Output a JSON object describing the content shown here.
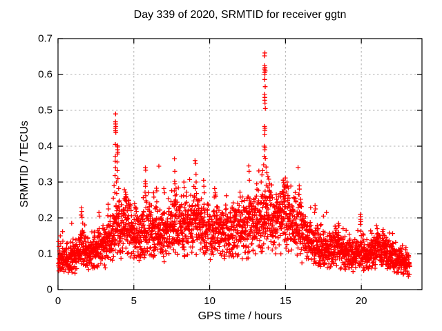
{
  "chart_data": {
    "type": "scatter",
    "title": "Day 339 of 2020, SRMTID for receiver ggtn",
    "xlabel": "GPS time / hours",
    "ylabel": "SRMTID / TECUs",
    "xlim": [
      0,
      24
    ],
    "ylim": [
      0,
      0.7
    ],
    "grid": true,
    "legend": "none",
    "marker": "plus",
    "marker_size": 6.8,
    "color": "#ff0000",
    "grid_color": "#b0b0b0",
    "axis_color": "#000000",
    "background_color": "#ffffff",
    "xticks": [
      {
        "v": 0,
        "label": "0"
      },
      {
        "v": 5,
        "label": "5"
      },
      {
        "v": 10,
        "label": "10"
      },
      {
        "v": 15,
        "label": "15"
      },
      {
        "v": 20,
        "label": "20"
      }
    ],
    "yticks": [
      {
        "v": 0.0,
        "label": "0"
      },
      {
        "v": 0.1,
        "label": "0.1"
      },
      {
        "v": 0.2,
        "label": "0.2"
      },
      {
        "v": 0.3,
        "label": "0.3"
      },
      {
        "v": 0.4,
        "label": "0.4"
      },
      {
        "v": 0.5,
        "label": "0.5"
      },
      {
        "v": 0.6,
        "label": "0.6"
      },
      {
        "v": 0.7,
        "label": "0.7"
      }
    ],
    "series": [
      {
        "name": "SRMTID",
        "generator": {
          "seed": 97,
          "t_start": 0.02,
          "t_end": 23.2,
          "t_step": 0.008,
          "x_jitter": 0.006,
          "f_min": 0.5,
          "f_span": 1.15,
          "corr": 0.82,
          "corr_amp": 0.3,
          "outlier_prob": 0.045,
          "outlier_min": 1.08,
          "outlier_span": 0.27,
          "cap_abs": 0.36,
          "cap_rel": 2.3,
          "floor_abs": 0.03,
          "envelope": [
            [
              0.0,
              0.065
            ],
            [
              0.5,
              0.075
            ],
            [
              1.0,
              0.085
            ],
            [
              1.5,
              0.105
            ],
            [
              2.0,
              0.09
            ],
            [
              2.5,
              0.1
            ],
            [
              3.0,
              0.11
            ],
            [
              3.5,
              0.125
            ],
            [
              3.8,
              0.155
            ],
            [
              4.1,
              0.145
            ],
            [
              4.5,
              0.16
            ],
            [
              5.0,
              0.15
            ],
            [
              5.5,
              0.14
            ],
            [
              5.8,
              0.16
            ],
            [
              6.2,
              0.15
            ],
            [
              6.6,
              0.16
            ],
            [
              7.0,
              0.145
            ],
            [
              7.4,
              0.15
            ],
            [
              7.7,
              0.165
            ],
            [
              8.0,
              0.15
            ],
            [
              8.5,
              0.155
            ],
            [
              9.0,
              0.17
            ],
            [
              9.4,
              0.165
            ],
            [
              10.0,
              0.15
            ],
            [
              10.4,
              0.165
            ],
            [
              10.8,
              0.13
            ],
            [
              11.2,
              0.14
            ],
            [
              11.6,
              0.15
            ],
            [
              12.0,
              0.155
            ],
            [
              12.5,
              0.165
            ],
            [
              13.0,
              0.175
            ],
            [
              13.4,
              0.165
            ],
            [
              13.7,
              0.19
            ],
            [
              14.0,
              0.175
            ],
            [
              14.4,
              0.165
            ],
            [
              14.9,
              0.195
            ],
            [
              15.3,
              0.17
            ],
            [
              15.7,
              0.155
            ],
            [
              16.1,
              0.14
            ],
            [
              16.5,
              0.12
            ],
            [
              17.0,
              0.115
            ],
            [
              17.5,
              0.105
            ],
            [
              18.0,
              0.1
            ],
            [
              18.5,
              0.105
            ],
            [
              19.0,
              0.09
            ],
            [
              19.5,
              0.082
            ],
            [
              20.0,
              0.095
            ],
            [
              20.5,
              0.085
            ],
            [
              21.0,
              0.095
            ],
            [
              21.5,
              0.095
            ],
            [
              22.0,
              0.08
            ],
            [
              22.5,
              0.078
            ],
            [
              23.0,
              0.07
            ],
            [
              23.2,
              0.065
            ]
          ]
        },
        "feature_points": [
          [
            0.15,
            0.15
          ],
          [
            0.3,
            0.162
          ],
          [
            0.9,
            0.185
          ],
          [
            1.52,
            0.208
          ],
          [
            1.55,
            0.228
          ],
          [
            1.57,
            0.218
          ],
          [
            2.7,
            0.215
          ],
          [
            2.72,
            0.205
          ],
          [
            3.3,
            0.238
          ],
          [
            3.32,
            0.225
          ],
          [
            3.8,
            0.49
          ],
          [
            3.79,
            0.468
          ],
          [
            3.8,
            0.462
          ],
          [
            3.81,
            0.455
          ],
          [
            3.79,
            0.45
          ],
          [
            3.8,
            0.443
          ],
          [
            3.81,
            0.438
          ],
          [
            3.78,
            0.405
          ],
          [
            3.92,
            0.402
          ],
          [
            3.94,
            0.398
          ],
          [
            3.93,
            0.39
          ],
          [
            3.95,
            0.383
          ],
          [
            3.92,
            0.378
          ],
          [
            3.78,
            0.372
          ],
          [
            3.77,
            0.358
          ],
          [
            3.9,
            0.356
          ],
          [
            3.79,
            0.34
          ],
          [
            3.91,
            0.332
          ],
          [
            3.76,
            0.318
          ],
          [
            3.95,
            0.31
          ],
          [
            3.85,
            0.3
          ],
          [
            3.7,
            0.29
          ],
          [
            4.0,
            0.282
          ],
          [
            3.87,
            0.268
          ],
          [
            3.65,
            0.255
          ],
          [
            4.05,
            0.248
          ],
          [
            4.42,
            0.25
          ],
          [
            4.45,
            0.272
          ],
          [
            4.48,
            0.265
          ],
          [
            4.5,
            0.258
          ],
          [
            5.74,
            0.272
          ],
          [
            5.75,
            0.302
          ],
          [
            5.76,
            0.34
          ],
          [
            5.76,
            0.288
          ],
          [
            5.77,
            0.295
          ],
          [
            5.78,
            0.333
          ],
          [
            5.79,
            0.262
          ],
          [
            5.8,
            0.248
          ],
          [
            6.3,
            0.27
          ],
          [
            6.32,
            0.258
          ],
          [
            6.98,
            0.282
          ],
          [
            7.02,
            0.27
          ],
          [
            7.67,
            0.275
          ],
          [
            7.68,
            0.365
          ],
          [
            7.69,
            0.302
          ],
          [
            7.7,
            0.33
          ],
          [
            7.71,
            0.295
          ],
          [
            7.73,
            0.262
          ],
          [
            7.75,
            0.25
          ],
          [
            8.28,
            0.262
          ],
          [
            8.3,
            0.3
          ],
          [
            8.32,
            0.285
          ],
          [
            9.06,
            0.282
          ],
          [
            9.08,
            0.352
          ],
          [
            9.1,
            0.322
          ],
          [
            9.11,
            0.3
          ],
          [
            9.13,
            0.268
          ],
          [
            9.15,
            0.252
          ],
          [
            9.6,
            0.305
          ],
          [
            9.62,
            0.288
          ],
          [
            9.64,
            0.27
          ],
          [
            10.3,
            0.258
          ],
          [
            10.33,
            0.282
          ],
          [
            10.36,
            0.27
          ],
          [
            11.1,
            0.262
          ],
          [
            12.0,
            0.272
          ],
          [
            12.02,
            0.258
          ],
          [
            12.56,
            0.258
          ],
          [
            12.58,
            0.345
          ],
          [
            12.6,
            0.33
          ],
          [
            12.62,
            0.305
          ],
          [
            13.1,
            0.295
          ],
          [
            13.12,
            0.28
          ],
          [
            13.4,
            0.3
          ],
          [
            13.45,
            0.32
          ],
          [
            13.5,
            0.332
          ],
          [
            13.56,
            0.348
          ],
          [
            13.6,
            0.372
          ],
          [
            13.61,
            0.4
          ],
          [
            13.62,
            0.652
          ],
          [
            13.62,
            0.615
          ],
          [
            13.62,
            0.545
          ],
          [
            13.62,
            0.455
          ],
          [
            13.63,
            0.625
          ],
          [
            13.63,
            0.605
          ],
          [
            13.63,
            0.586
          ],
          [
            13.63,
            0.528
          ],
          [
            13.63,
            0.432
          ],
          [
            13.64,
            0.66
          ],
          [
            13.64,
            0.6
          ],
          [
            13.64,
            0.536
          ],
          [
            13.64,
            0.444
          ],
          [
            13.64,
            0.39
          ],
          [
            13.65,
            0.62
          ],
          [
            13.65,
            0.52
          ],
          [
            13.65,
            0.45
          ],
          [
            13.65,
            0.396
          ],
          [
            13.66,
            0.61
          ],
          [
            13.66,
            0.566
          ],
          [
            13.67,
            0.505
          ],
          [
            13.67,
            0.366
          ],
          [
            13.72,
            0.342
          ],
          [
            13.77,
            0.326
          ],
          [
            13.84,
            0.315
          ],
          [
            13.9,
            0.308
          ],
          [
            13.95,
            0.295
          ],
          [
            14.82,
            0.27
          ],
          [
            14.85,
            0.305
          ],
          [
            14.88,
            0.298
          ],
          [
            14.9,
            0.278
          ],
          [
            14.92,
            0.292
          ],
          [
            14.95,
            0.285
          ],
          [
            14.97,
            0.262
          ],
          [
            15.1,
            0.3
          ],
          [
            15.12,
            0.288
          ],
          [
            15.9,
            0.265
          ],
          [
            16.0,
            0.252
          ],
          [
            16.02,
            0.242
          ],
          [
            16.92,
            0.215
          ],
          [
            16.95,
            0.235
          ],
          [
            16.98,
            0.225
          ],
          [
            17.5,
            0.205
          ],
          [
            17.7,
            0.215
          ],
          [
            18.5,
            0.185
          ],
          [
            18.53,
            0.178
          ],
          [
            18.8,
            0.17
          ],
          [
            19.0,
            0.165
          ],
          [
            19.93,
            0.182
          ],
          [
            19.94,
            0.21
          ],
          [
            19.95,
            0.196
          ],
          [
            19.96,
            0.204
          ],
          [
            19.97,
            0.19
          ],
          [
            21.0,
            0.178
          ],
          [
            21.05,
            0.17
          ],
          [
            21.4,
            0.162
          ],
          [
            21.45,
            0.155
          ],
          [
            22.1,
            0.128
          ]
        ]
      }
    ]
  }
}
